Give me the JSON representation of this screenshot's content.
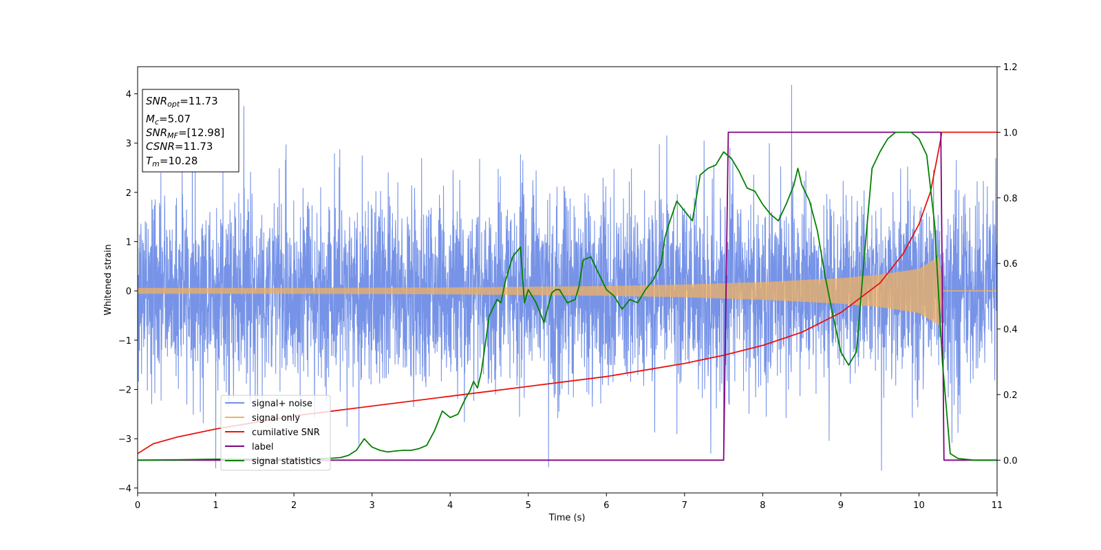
{
  "chart_data": {
    "type": "line",
    "xlabel": "Time (s)",
    "ylabel": "Whitened strain",
    "xlim": [
      0,
      11
    ],
    "ylim_left": [
      -4.1,
      4.55
    ],
    "ylim_right": [
      -0.1,
      1.2
    ],
    "x_ticks": [
      "0",
      "1",
      "2",
      "3",
      "4",
      "5",
      "6",
      "7",
      "8",
      "9",
      "10",
      "11"
    ],
    "y_ticks_left": [
      "−4",
      "−3",
      "−2",
      "−1",
      "0",
      "1",
      "2",
      "3",
      "4"
    ],
    "y_ticks_right": [
      "0.0",
      "0.2",
      "0.4",
      "0.6",
      "0.8",
      "1.0",
      "1.2"
    ],
    "grid": false,
    "legend_position": "lower-left",
    "info_box": {
      "snr_opt": {
        "sym": "SNR",
        "sub": "opt",
        "val": "=11.73"
      },
      "mc": {
        "sym": "M",
        "sub": "c",
        "val": "=5.07"
      },
      "snr_mf": {
        "sym": "SNR",
        "sub": "MF",
        "val": "=[12.98]"
      },
      "csnr": {
        "sym": "CSNR",
        "sub": "",
        "val": "=11.73"
      },
      "tm": {
        "sym": "T",
        "sub": "m",
        "val": "=10.28"
      }
    },
    "series": [
      {
        "name": "signal+ noise",
        "color": "#6f8de6",
        "axis": "left",
        "description_range": [
          -3.6,
          4.15
        ],
        "peaks": [
          [
            1.36,
            3.75
          ],
          [
            8.37,
            4.18
          ],
          [
            0.57,
            2.95
          ],
          [
            1.9,
            2.97
          ],
          [
            7.25,
            3.05
          ],
          [
            9.52,
            -3.65
          ],
          [
            5.26,
            -3.58
          ],
          [
            1.0,
            -3.6
          ]
        ]
      },
      {
        "name": "signal only",
        "color": "#f0b060",
        "axis": "left",
        "amplitude_envelope": [
          [
            0,
            0.06
          ],
          [
            2,
            0.06
          ],
          [
            4,
            0.07
          ],
          [
            6,
            0.1
          ],
          [
            7,
            0.13
          ],
          [
            8,
            0.18
          ],
          [
            9,
            0.26
          ],
          [
            9.5,
            0.33
          ],
          [
            10,
            0.45
          ],
          [
            10.28,
            0.72
          ],
          [
            10.29,
            0
          ],
          [
            11,
            0
          ]
        ]
      },
      {
        "name": "cumilative SNR",
        "color": "#e8110f",
        "axis": "right",
        "x": [
          0,
          0.2,
          0.5,
          1,
          1.5,
          2,
          2.5,
          3,
          3.5,
          4,
          4.5,
          5,
          5.5,
          6,
          6.5,
          7,
          7.5,
          8,
          8.5,
          9,
          9.5,
          9.8,
          10,
          10.15,
          10.28,
          10.29,
          11
        ],
        "y": [
          0.02,
          0.05,
          0.07,
          0.095,
          0.115,
          0.135,
          0.15,
          0.165,
          0.18,
          0.195,
          0.21,
          0.225,
          0.24,
          0.255,
          0.275,
          0.295,
          0.32,
          0.35,
          0.39,
          0.45,
          0.54,
          0.63,
          0.72,
          0.82,
          0.98,
          1.0,
          1.0
        ]
      },
      {
        "name": "label",
        "color": "#800080",
        "axis": "right",
        "x": [
          0,
          7.5,
          7.56,
          10.28,
          10.32,
          11
        ],
        "y": [
          0,
          0,
          1,
          1,
          0,
          0
        ]
      },
      {
        "name": "signal statistics",
        "color": "#008000",
        "axis": "right",
        "x": [
          0,
          0.5,
          1.0,
          1.5,
          2.0,
          2.5,
          2.6,
          2.7,
          2.8,
          2.9,
          3.0,
          3.1,
          3.2,
          3.3,
          3.4,
          3.5,
          3.6,
          3.7,
          3.8,
          3.9,
          4.0,
          4.1,
          4.2,
          4.25,
          4.3,
          4.35,
          4.4,
          4.5,
          4.6,
          4.65,
          4.7,
          4.75,
          4.8,
          4.9,
          4.95,
          5.0,
          5.1,
          5.15,
          5.2,
          5.3,
          5.35,
          5.4,
          5.5,
          5.6,
          5.65,
          5.7,
          5.8,
          5.9,
          6.0,
          6.1,
          6.2,
          6.3,
          6.4,
          6.5,
          6.6,
          6.7,
          6.75,
          6.8,
          6.9,
          7.0,
          7.1,
          7.2,
          7.3,
          7.4,
          7.5,
          7.6,
          7.7,
          7.8,
          7.9,
          8.0,
          8.1,
          8.2,
          8.3,
          8.4,
          8.45,
          8.5,
          8.6,
          8.7,
          8.8,
          8.9,
          9.0,
          9.1,
          9.2,
          9.3,
          9.4,
          9.5,
          9.6,
          9.7,
          9.8,
          9.9,
          10.0,
          10.1,
          10.2,
          10.3,
          10.4,
          10.5,
          10.7,
          11
        ],
        "y": [
          0.0,
          0.001,
          0.003,
          0.003,
          0.002,
          0.006,
          0.008,
          0.015,
          0.03,
          0.065,
          0.04,
          0.03,
          0.025,
          0.028,
          0.03,
          0.03,
          0.035,
          0.045,
          0.09,
          0.15,
          0.13,
          0.14,
          0.19,
          0.21,
          0.24,
          0.22,
          0.27,
          0.44,
          0.49,
          0.48,
          0.54,
          0.58,
          0.62,
          0.65,
          0.48,
          0.52,
          0.48,
          0.45,
          0.42,
          0.51,
          0.52,
          0.52,
          0.48,
          0.49,
          0.53,
          0.61,
          0.62,
          0.57,
          0.52,
          0.5,
          0.46,
          0.49,
          0.48,
          0.52,
          0.55,
          0.6,
          0.68,
          0.72,
          0.79,
          0.76,
          0.73,
          0.87,
          0.89,
          0.9,
          0.94,
          0.92,
          0.88,
          0.83,
          0.82,
          0.78,
          0.75,
          0.73,
          0.78,
          0.84,
          0.89,
          0.84,
          0.79,
          0.7,
          0.56,
          0.44,
          0.33,
          0.29,
          0.33,
          0.62,
          0.89,
          0.94,
          0.98,
          1.0,
          1.0,
          1.0,
          0.98,
          0.93,
          0.72,
          0.3,
          0.02,
          0.005,
          0.0,
          0.0
        ]
      }
    ]
  }
}
